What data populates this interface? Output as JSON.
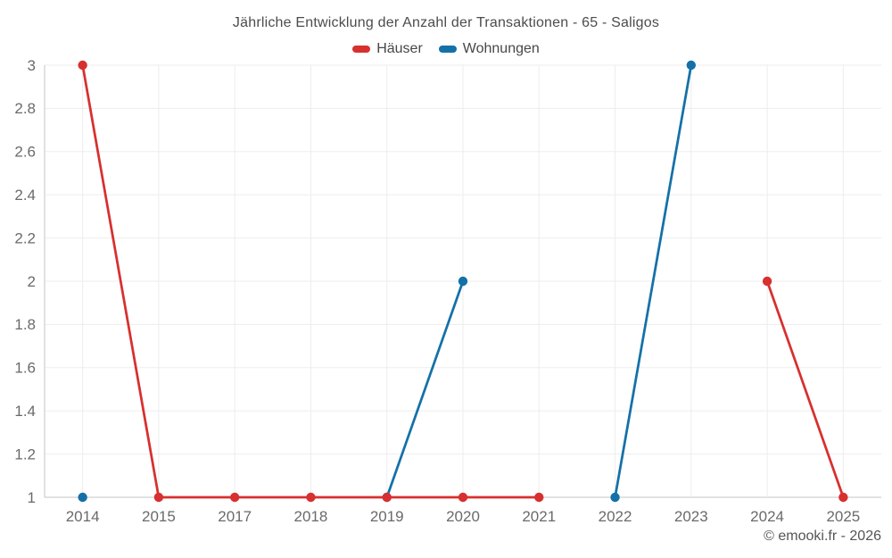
{
  "chart": {
    "title": "Jährliche Entwicklung der Anzahl der Transaktionen - 65 - Saligos",
    "footer": "© emooki.fr - 2026"
  },
  "colors": {
    "grid": "#ededed",
    "axis": "#c6c6c6",
    "tick_label": "#6a6a6a",
    "title_text": "#4c4c4c"
  },
  "chart_data": {
    "type": "line",
    "title": "Jährliche Entwicklung der Anzahl der Transaktionen - 65 - Saligos",
    "categories": [
      "2014",
      "2015",
      "2017",
      "2018",
      "2019",
      "2020",
      "2021",
      "2022",
      "2023",
      "2024",
      "2025"
    ],
    "series": [
      {
        "name": "Häuser",
        "color": "#d7302f",
        "values": [
          3,
          1,
          1,
          1,
          1,
          1,
          1,
          null,
          null,
          2,
          1
        ]
      },
      {
        "name": "Wohnungen",
        "color": "#1471a8",
        "values": [
          1,
          null,
          null,
          null,
          1,
          2,
          null,
          1,
          3,
          null,
          null
        ]
      }
    ],
    "xlabel": "",
    "ylabel": "",
    "ylim": [
      1,
      3
    ],
    "yticks": [
      1,
      1.2,
      1.4,
      1.6,
      1.8,
      2,
      2.2,
      2.4,
      2.6,
      2.8,
      3
    ],
    "grid": true,
    "legend_position": "top"
  }
}
